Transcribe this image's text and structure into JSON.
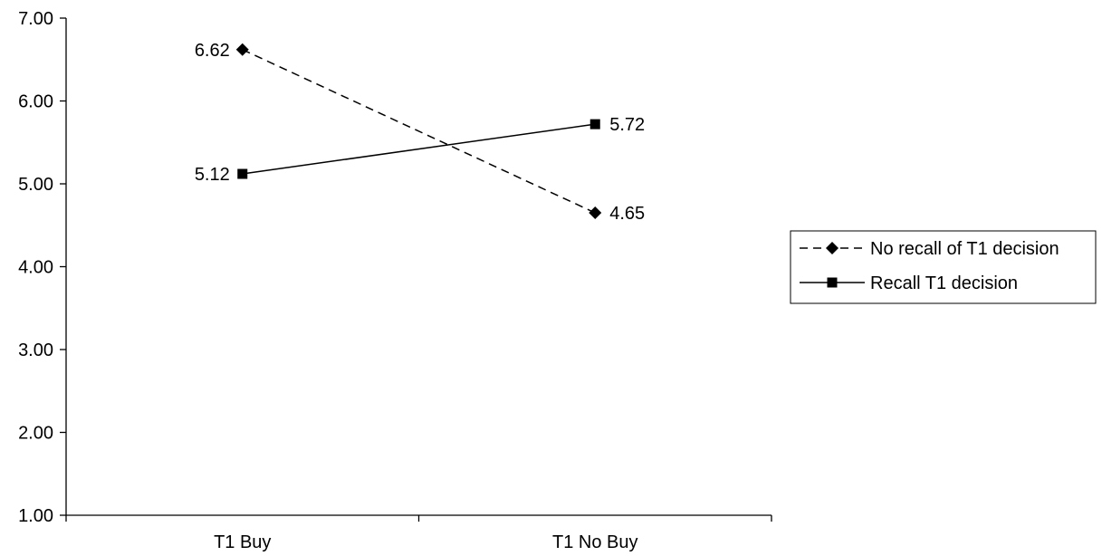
{
  "chart_data": {
    "type": "line",
    "title": "",
    "xlabel": "",
    "ylabel": "",
    "categories": [
      "T1 Buy",
      "T1 No Buy"
    ],
    "ylim": [
      1.0,
      7.0
    ],
    "yticks": [
      "1.00",
      "2.00",
      "3.00",
      "4.00",
      "5.00",
      "6.00",
      "7.00"
    ],
    "grid": false,
    "legend_position": "right",
    "series": [
      {
        "name": "No recall of T1 decision",
        "values": [
          6.62,
          4.65
        ],
        "labels": [
          "6.62",
          "4.65"
        ],
        "line_style": "dashed",
        "marker": "diamond",
        "color": "#000000"
      },
      {
        "name": "Recall T1 decision",
        "values": [
          5.12,
          5.72
        ],
        "labels": [
          "5.12",
          "5.72"
        ],
        "line_style": "solid",
        "marker": "square",
        "color": "#000000"
      }
    ]
  }
}
